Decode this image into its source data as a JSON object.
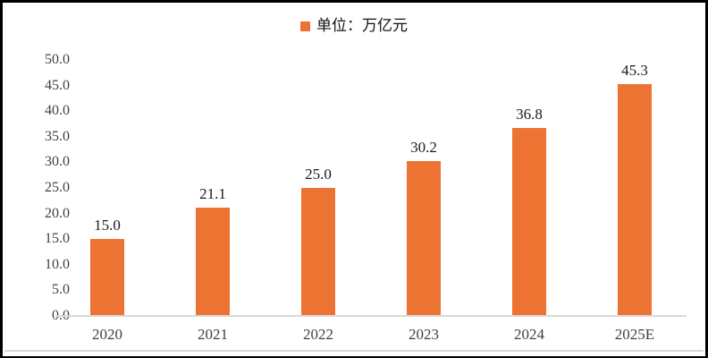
{
  "chart_data": {
    "type": "bar",
    "title": "",
    "xlabel": "",
    "ylabel": "",
    "legend": {
      "label": "单位：万亿元",
      "marker_color": "#ED7332",
      "position": "top-center"
    },
    "categories": [
      "2020",
      "2021",
      "2022",
      "2023",
      "2024",
      "2025E"
    ],
    "values": [
      15.0,
      21.1,
      25.0,
      30.2,
      36.8,
      45.3
    ],
    "data_labels": [
      "15.0",
      "21.1",
      "25.0",
      "30.2",
      "36.8",
      "45.3"
    ],
    "ylim": [
      0,
      50
    ],
    "ytick_step": 5,
    "yticks": [
      "0.0",
      "5.0",
      "10.0",
      "15.0",
      "20.0",
      "25.0",
      "30.0",
      "35.0",
      "40.0",
      "45.0",
      "50.0"
    ],
    "grid": false,
    "bar_color": "#ED7332",
    "axis_line_color": "#D9D9D9",
    "axis_text_color": "#404040",
    "data_label_color": "#1A1A1A",
    "frame_border_color": "#000000",
    "background_color": "#FFFFFF"
  }
}
